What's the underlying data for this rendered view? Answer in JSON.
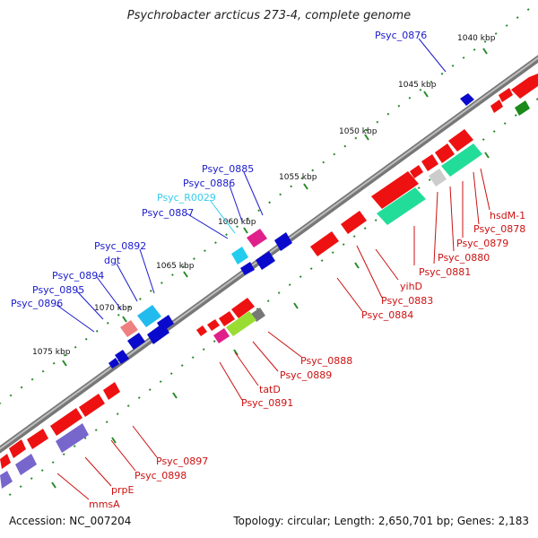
{
  "title": "Psychrobacter arcticus 273-4, complete genome",
  "footer": {
    "accession": "Accession: NC_007204",
    "summary": "Topology: circular; Length: 2,650,701 bp; Genes: 2,183"
  },
  "colors": {
    "blue_label": "#1a1acc",
    "cyan_label": "#33ccee",
    "red_label": "#cc1111",
    "backbone": "#777777",
    "tick": "#2b8a2b"
  },
  "kbp_labels": [
    "1040 kbp",
    "1045 kbp",
    "1050 kbp",
    "1055 kbp",
    "1060 kbp",
    "1065 kbp",
    "1070 kbp",
    "1075 kbp"
  ],
  "plus_labels": [
    {
      "text": "Psyc_0876",
      "color": "blue"
    },
    {
      "text": "Psyc_0885",
      "color": "blue"
    },
    {
      "text": "Psyc_0886",
      "color": "blue"
    },
    {
      "text": "Psyc_R0029",
      "color": "cyan"
    },
    {
      "text": "Psyc_0887",
      "color": "blue"
    },
    {
      "text": "Psyc_0892",
      "color": "blue"
    },
    {
      "text": "dgt",
      "color": "blue"
    },
    {
      "text": "Psyc_0894",
      "color": "blue"
    },
    {
      "text": "Psyc_0895",
      "color": "blue"
    },
    {
      "text": "Psyc_0896",
      "color": "blue"
    }
  ],
  "minus_labels": [
    {
      "text": "hsdM-1",
      "color": "red"
    },
    {
      "text": "Psyc_0878",
      "color": "red"
    },
    {
      "text": "Psyc_0879",
      "color": "red"
    },
    {
      "text": "Psyc_0880",
      "color": "red"
    },
    {
      "text": "Psyc_0881",
      "color": "red"
    },
    {
      "text": "yihD",
      "color": "red"
    },
    {
      "text": "Psyc_0883",
      "color": "red"
    },
    {
      "text": "Psyc_0884",
      "color": "red"
    },
    {
      "text": "Psyc_0888",
      "color": "red"
    },
    {
      "text": "Psyc_0889",
      "color": "red"
    },
    {
      "text": "tatD",
      "color": "red"
    },
    {
      "text": "Psyc_0891",
      "color": "red"
    },
    {
      "text": "Psyc_0897",
      "color": "red"
    },
    {
      "text": "Psyc_0898",
      "color": "red"
    },
    {
      "text": "prpE",
      "color": "red"
    },
    {
      "text": "mmsA",
      "color": "red"
    }
  ]
}
